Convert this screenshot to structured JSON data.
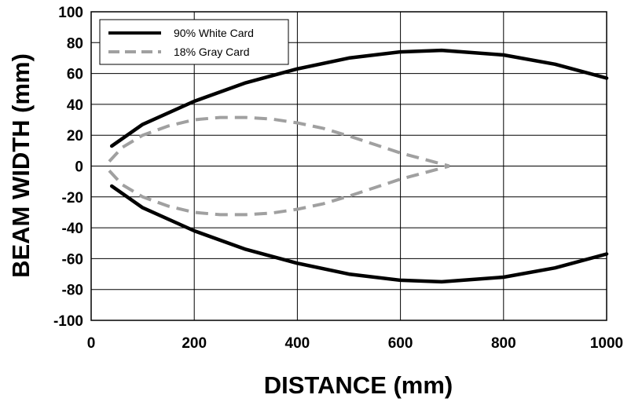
{
  "chart_data": {
    "type": "line",
    "title": "",
    "xlabel": "DISTANCE (mm)",
    "ylabel": "BEAM WIDTH (mm)",
    "xlim": [
      0,
      1000
    ],
    "ylim": [
      -100,
      100
    ],
    "xticks": [
      0,
      200,
      400,
      600,
      800,
      1000
    ],
    "yticks": [
      100,
      80,
      60,
      40,
      20,
      0,
      -20,
      -40,
      -60,
      -80,
      -100
    ],
    "grid": true,
    "legend_position": "top-left",
    "series": [
      {
        "name": "90% White Card",
        "color": "#000000",
        "style": "solid",
        "upper": {
          "x": [
            40,
            100,
            200,
            300,
            400,
            500,
            600,
            680,
            800,
            900,
            1000
          ],
          "y": [
            13,
            27,
            42,
            54,
            63,
            70,
            74,
            75,
            72,
            66,
            57
          ]
        },
        "lower": {
          "x": [
            40,
            100,
            200,
            300,
            400,
            500,
            600,
            680,
            800,
            900,
            1000
          ],
          "y": [
            -13,
            -27,
            -42,
            -54,
            -63,
            -70,
            -74,
            -75,
            -72,
            -66,
            -57
          ]
        }
      },
      {
        "name": "18% Gray Card",
        "color": "#a0a0a0",
        "style": "dashed",
        "upper": {
          "x": [
            35,
            60,
            100,
            150,
            200,
            250,
            300,
            350,
            400,
            450,
            500,
            550,
            600,
            650,
            695
          ],
          "y": [
            3,
            12,
            20,
            26,
            30,
            31.5,
            31.5,
            30.5,
            28,
            24.5,
            19.5,
            14,
            8.5,
            4,
            0
          ]
        },
        "lower": {
          "x": [
            35,
            60,
            100,
            150,
            200,
            250,
            300,
            350,
            400,
            450,
            500,
            550,
            600,
            650,
            695
          ],
          "y": [
            -3,
            -12,
            -20,
            -26,
            -30,
            -31.5,
            -31.5,
            -30.5,
            -28,
            -24.5,
            -19.5,
            -14,
            -8.5,
            -4,
            0
          ]
        }
      }
    ]
  }
}
